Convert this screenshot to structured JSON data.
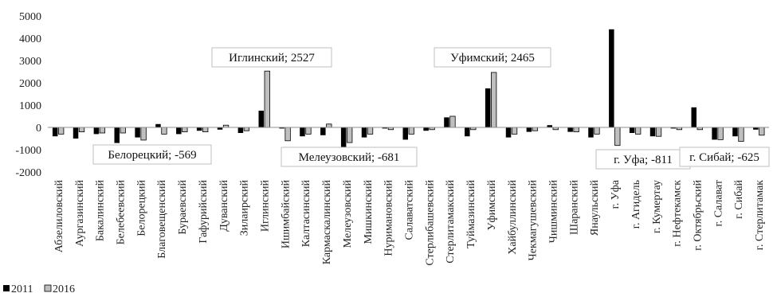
{
  "chart_data": {
    "type": "bar",
    "categories": [
      "Абзелиловский",
      "Аургазинский",
      "Бакалинский",
      "Белебеевский",
      "Белорецкий",
      "Благовещенский",
      "Бураевский",
      "Гафурийский",
      "Дуванский",
      "Зилаирский",
      "Иглинский",
      "Ишимбайский",
      "Калтасинский",
      "Кармаскалинский",
      "Мелеузовский",
      "Мишкинский",
      "Нуримановский",
      "Салаватский",
      "Стерлибашевский",
      "Стерлитамакский",
      "Туймазинский",
      "Уфимский",
      "Хайбуллинский",
      "Чекмагушевский",
      "Чишминский",
      "Шаранский",
      "Янаульский",
      "г. Уфа",
      "г. Агидель",
      "г. Кумертау",
      "г. Нефтекамск",
      "г. Октябрьский",
      "г. Салават",
      "г. Сибай",
      "г. Стерлитамак"
    ],
    "series": [
      {
        "name": "2011",
        "color": "#000000",
        "values": [
          -400,
          -500,
          -300,
          -700,
          -450,
          150,
          -300,
          -150,
          -100,
          -250,
          750,
          -50,
          -400,
          -350,
          -900,
          -450,
          -50,
          -550,
          -150,
          450,
          -400,
          1750,
          -450,
          -200,
          100,
          -200,
          -450,
          4400,
          -250,
          -400,
          -50,
          900,
          -550,
          -400,
          -100
        ]
      },
      {
        "name": "2016",
        "color": "#bfbfbf",
        "values": [
          -300,
          -200,
          -250,
          -250,
          -569,
          -300,
          -200,
          -200,
          100,
          -150,
          2527,
          -600,
          -300,
          150,
          -681,
          -300,
          -100,
          -300,
          -100,
          500,
          -100,
          2465,
          -300,
          -150,
          -100,
          -200,
          -300,
          -811,
          -300,
          -400,
          -100,
          -100,
          -550,
          -625,
          -350
        ]
      }
    ],
    "ylim": [
      -2000,
      5000
    ],
    "yticks": [
      -2000,
      -1000,
      0,
      1000,
      2000,
      3000,
      4000,
      5000
    ],
    "grid": false,
    "legend_position": "bottom-left",
    "annotations": [
      {
        "text": "Иглинский; 2527",
        "category": "Иглинский",
        "series": "2016"
      },
      {
        "text": "Белорецкий; -569",
        "category": "Белорецкий",
        "series": "2016"
      },
      {
        "text": "Мелеузовский; -681",
        "category": "Мелеузовский",
        "series": "2016"
      },
      {
        "text": "Уфимский; 2465",
        "category": "Уфимский",
        "series": "2016"
      },
      {
        "text": "г. Уфа; -811",
        "category": "г. Уфа",
        "series": "2016"
      },
      {
        "text": "г. Сибай;  -625",
        "category": "г. Сибай",
        "series": "2016"
      }
    ]
  }
}
